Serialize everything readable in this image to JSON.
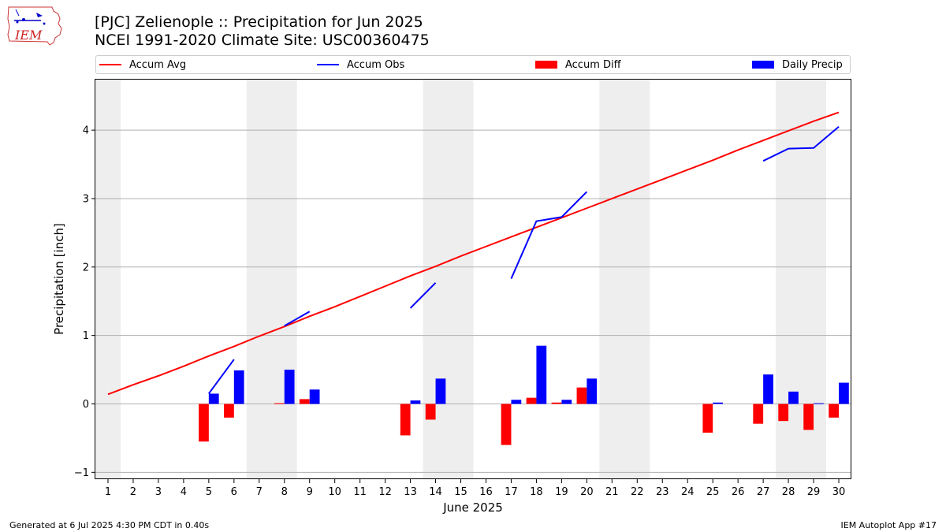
{
  "header": {
    "logo_text": "IEM",
    "title_line1": "[PJC] Zelienople :: Precipitation for Jun 2025",
    "title_line2": "NCEI 1991-2020 Climate Site: USC00360475"
  },
  "legend": {
    "accum_avg": "Accum Avg",
    "accum_obs": "Accum Obs",
    "accum_diff": "Accum Diff",
    "daily_precip": "Daily Precip"
  },
  "colors": {
    "avg": "#ff0000",
    "obs": "#0000ff",
    "diff": "#ff0000",
    "daily": "#0000ff",
    "weekend_shade": "#eeeeee",
    "grid": "#b0b0b0"
  },
  "footer": {
    "generated": "Generated at 6 Jul 2025 4:30 PM CDT in 0.40s",
    "app": "IEM Autoplot App #17"
  },
  "chart_data": {
    "type": "bar",
    "xlabel": "June 2025",
    "ylabel": "Precipitation [inch]",
    "xlim": [
      0.5,
      30.5
    ],
    "ylim": [
      -1.1,
      4.75
    ],
    "yticks": [
      -1,
      0,
      1,
      2,
      3,
      4
    ],
    "xticks": [
      1,
      2,
      3,
      4,
      5,
      6,
      7,
      8,
      9,
      10,
      11,
      12,
      13,
      14,
      15,
      16,
      17,
      18,
      19,
      20,
      21,
      22,
      23,
      24,
      25,
      26,
      27,
      28,
      29,
      30
    ],
    "grid": "horizontal",
    "legend_placement": "top",
    "weekend_shading": [
      [
        0.5,
        1.5
      ],
      [
        6.5,
        8.5
      ],
      [
        13.5,
        15.5
      ],
      [
        20.5,
        22.5
      ],
      [
        27.5,
        29.5
      ]
    ],
    "series": [
      {
        "name": "Accum Avg",
        "kind": "line",
        "x": [
          1,
          2,
          3,
          4,
          5,
          6,
          7,
          8,
          9,
          10,
          11,
          12,
          13,
          14,
          15,
          16,
          17,
          18,
          19,
          20,
          21,
          22,
          23,
          24,
          25,
          26,
          27,
          28,
          29,
          30
        ],
        "values": [
          0.14,
          0.28,
          0.41,
          0.55,
          0.7,
          0.84,
          0.99,
          1.13,
          1.28,
          1.42,
          1.57,
          1.72,
          1.87,
          2.01,
          2.16,
          2.3,
          2.44,
          2.58,
          2.72,
          2.86,
          3.0,
          3.14,
          3.28,
          3.42,
          3.56,
          3.71,
          3.85,
          3.99,
          4.13,
          4.26
        ]
      },
      {
        "name": "Accum Obs",
        "kind": "line",
        "segments": [
          {
            "x": [
              5,
              6
            ],
            "values": [
              0.15,
              0.65
            ]
          },
          {
            "x": [
              8,
              9
            ],
            "values": [
              1.14,
              1.35
            ]
          },
          {
            "x": [
              13,
              14
            ],
            "values": [
              1.4,
              1.77
            ]
          },
          {
            "x": [
              17,
              18,
              19,
              20
            ],
            "values": [
              1.83,
              2.67,
              2.73,
              3.1
            ]
          },
          {
            "x": [
              27,
              28,
              29,
              30
            ],
            "values": [
              3.55,
              3.73,
              3.74,
              4.05
            ]
          }
        ]
      },
      {
        "name": "Accum Diff",
        "kind": "bar",
        "x": [
          5,
          6,
          8,
          9,
          13,
          14,
          17,
          18,
          19,
          20,
          25,
          27,
          28,
          29,
          30
        ],
        "values": [
          -0.55,
          -0.2,
          0.01,
          0.07,
          -0.46,
          -0.23,
          -0.6,
          0.09,
          0.02,
          0.24,
          -0.42,
          -0.29,
          -0.25,
          -0.38,
          -0.2
        ]
      },
      {
        "name": "Daily Precip",
        "kind": "bar",
        "x": [
          5,
          6,
          8,
          9,
          13,
          14,
          17,
          18,
          19,
          20,
          25,
          27,
          28,
          29,
          30
        ],
        "values": [
          0.15,
          0.49,
          0.5,
          0.21,
          0.05,
          0.37,
          0.06,
          0.85,
          0.06,
          0.37,
          0.02,
          0.43,
          0.18,
          0.01,
          0.31
        ]
      }
    ]
  }
}
